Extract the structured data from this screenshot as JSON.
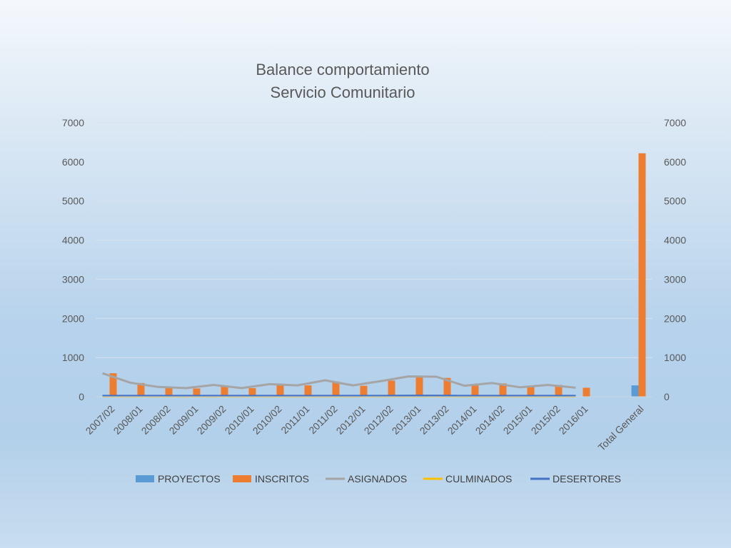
{
  "chart_data": {
    "type": "bar",
    "title_lines": [
      "Balance comportamiento",
      "Servicio Comunitario"
    ],
    "categories": [
      "2007/02",
      "2008/01",
      "2008/02",
      "2009/01",
      "2009/02",
      "2010/01",
      "2010/02",
      "2011/01",
      "2011/02",
      "2012/01",
      "2012/02",
      "2013/01",
      "2013/02",
      "2014/01",
      "2014/02",
      "2015/01",
      "2015/02",
      "2016/01",
      "",
      "Total General"
    ],
    "ylim": [
      0,
      7000
    ],
    "yticks": [
      "0",
      "1000",
      "2000",
      "3000",
      "4000",
      "5000",
      "6000",
      "7000"
    ],
    "grid": true,
    "legend_position": "bottom",
    "series": [
      {
        "name": "PROYECTOS",
        "kind": "bar",
        "color": "#5b9bd5",
        "values": [
          15,
          12,
          10,
          8,
          10,
          9,
          11,
          10,
          14,
          10,
          12,
          15,
          14,
          10,
          12,
          9,
          10,
          8,
          null,
          290
        ]
      },
      {
        "name": "INSCRITOS",
        "kind": "bar",
        "color": "#ed7d31",
        "values": [
          600,
          350,
          240,
          210,
          290,
          220,
          310,
          290,
          390,
          280,
          410,
          510,
          480,
          290,
          340,
          250,
          300,
          230,
          null,
          6220
        ]
      },
      {
        "name": "ASIGNADOS",
        "kind": "line",
        "color": "#a5a5a5",
        "values": [
          600,
          360,
          250,
          220,
          300,
          220,
          320,
          290,
          420,
          290,
          400,
          520,
          510,
          280,
          350,
          240,
          300,
          230,
          null,
          null
        ]
      },
      {
        "name": "CULMINADOS",
        "kind": "line",
        "color": "#ffc000",
        "values": [
          10,
          10,
          10,
          10,
          10,
          10,
          10,
          10,
          10,
          10,
          10,
          10,
          10,
          10,
          10,
          10,
          10,
          10,
          null,
          null
        ]
      },
      {
        "name": "DESERTORES",
        "kind": "line",
        "color": "#4472c4",
        "values": [
          20,
          20,
          20,
          20,
          20,
          20,
          20,
          20,
          20,
          20,
          20,
          25,
          25,
          20,
          20,
          20,
          20,
          20,
          null,
          null
        ]
      }
    ]
  }
}
